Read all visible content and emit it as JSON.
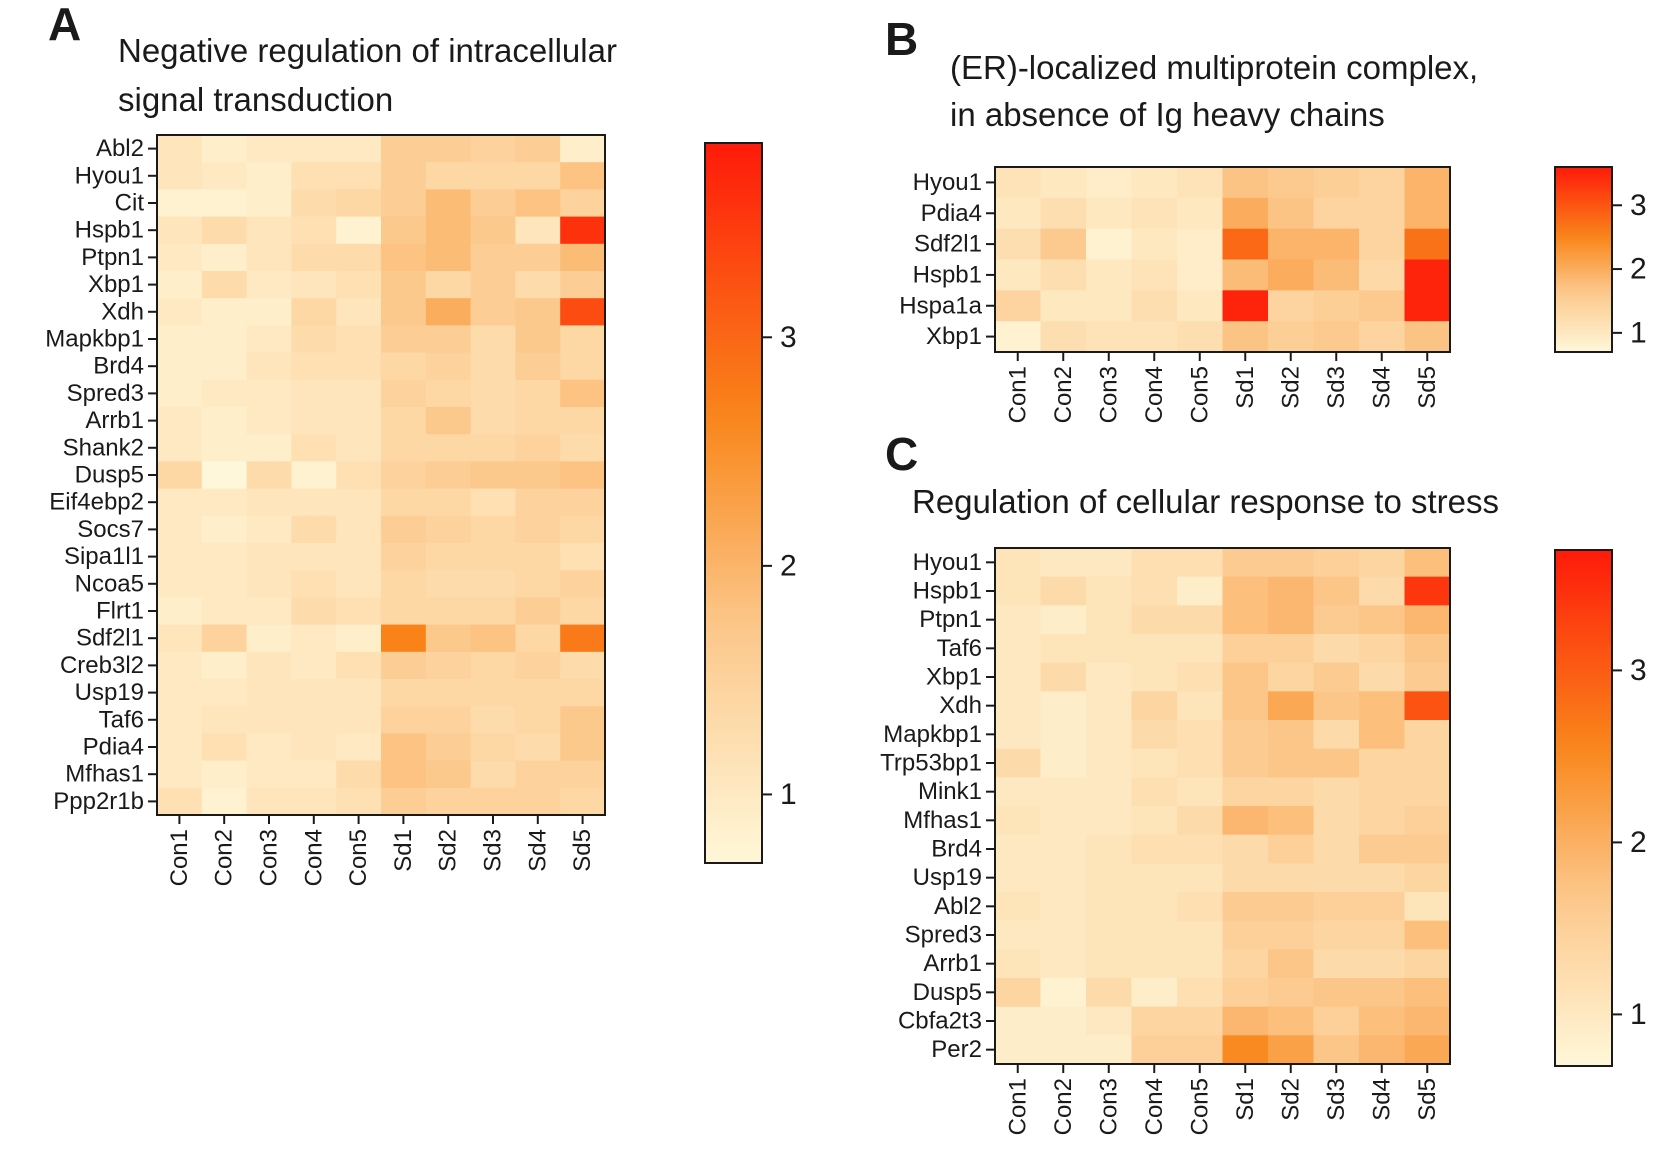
{
  "panels": {
    "A": {
      "letter": "A",
      "title_lines": [
        "Negative regulation of intracellular",
        "signal transduction"
      ]
    },
    "B": {
      "letter": "B",
      "title_lines": [
        "(ER)-localized multiprotein complex,",
        "in absence of Ig heavy chains"
      ]
    },
    "C": {
      "letter": "C",
      "title_lines": [
        "Regulation of cellular response to stress"
      ]
    }
  },
  "colors": {
    "low": "#fff7d9",
    "mid_low": "#fcc78a",
    "mid": "#f9861a",
    "high": "#ff1a0a",
    "frame": "#1a1a1a"
  },
  "chart_data": [
    {
      "type": "heatmap",
      "panel": "A",
      "title": "Negative regulation of intracellular signal transduction",
      "columns": [
        "Con1",
        "Con2",
        "Con3",
        "Con4",
        "Con5",
        "Sd1",
        "Sd2",
        "Sd3",
        "Sd4",
        "Sd5"
      ],
      "rows": [
        "Abl2",
        "Hyou1",
        "Cit",
        "Hspb1",
        "Ptpn1",
        "Xbp1",
        "Xdh",
        "Mapkbp1",
        "Brd4",
        "Spred3",
        "Arrb1",
        "Shank2",
        "Dusp5",
        "Eif4ebp2",
        "Socs7",
        "Sipa1l1",
        "Ncoa5",
        "Flrt1",
        "Sdf2l1",
        "Creb3l2",
        "Usp19",
        "Taf6",
        "Pdia4",
        "Mfhas1",
        "Ppp2r1b"
      ],
      "values": [
        [
          1.1,
          0.9,
          1.0,
          1.0,
          1.0,
          1.6,
          1.6,
          1.5,
          1.6,
          0.9
        ],
        [
          1.1,
          1.0,
          0.9,
          1.2,
          1.2,
          1.6,
          1.4,
          1.4,
          1.4,
          1.8
        ],
        [
          0.8,
          0.8,
          0.9,
          1.3,
          1.4,
          1.6,
          1.9,
          1.6,
          1.8,
          1.5
        ],
        [
          1.1,
          1.3,
          1.1,
          1.2,
          0.8,
          1.7,
          1.9,
          1.7,
          1.1,
          3.6
        ],
        [
          1.0,
          0.9,
          1.1,
          1.3,
          1.3,
          1.8,
          1.9,
          1.6,
          1.6,
          1.9
        ],
        [
          0.9,
          1.3,
          1.0,
          1.1,
          1.2,
          1.7,
          1.4,
          1.6,
          1.3,
          1.6
        ],
        [
          1.0,
          0.9,
          0.9,
          1.4,
          1.1,
          1.7,
          2.1,
          1.6,
          1.7,
          3.3
        ],
        [
          0.9,
          0.9,
          1.0,
          1.3,
          1.2,
          1.6,
          1.6,
          1.3,
          1.7,
          1.4
        ],
        [
          0.9,
          0.9,
          1.1,
          1.2,
          1.2,
          1.4,
          1.5,
          1.3,
          1.6,
          1.4
        ],
        [
          0.9,
          1.0,
          1.0,
          1.1,
          1.1,
          1.5,
          1.4,
          1.3,
          1.4,
          1.8
        ],
        [
          1.0,
          0.9,
          1.0,
          1.1,
          1.1,
          1.4,
          1.7,
          1.3,
          1.4,
          1.4
        ],
        [
          1.0,
          0.9,
          0.9,
          1.2,
          1.1,
          1.4,
          1.4,
          1.4,
          1.5,
          1.3
        ],
        [
          1.4,
          0.7,
          1.3,
          0.8,
          1.2,
          1.5,
          1.6,
          1.7,
          1.7,
          1.8
        ],
        [
          1.0,
          1.0,
          1.1,
          1.1,
          1.1,
          1.4,
          1.4,
          1.2,
          1.5,
          1.5
        ],
        [
          1.0,
          0.9,
          1.0,
          1.3,
          1.1,
          1.6,
          1.5,
          1.4,
          1.5,
          1.4
        ],
        [
          1.0,
          1.0,
          1.1,
          1.1,
          1.1,
          1.5,
          1.4,
          1.4,
          1.4,
          1.2
        ],
        [
          1.0,
          1.0,
          1.1,
          1.2,
          1.1,
          1.4,
          1.3,
          1.3,
          1.4,
          1.5
        ],
        [
          0.9,
          1.0,
          1.0,
          1.3,
          1.2,
          1.4,
          1.4,
          1.4,
          1.6,
          1.4
        ],
        [
          1.1,
          1.5,
          0.9,
          1.0,
          0.9,
          2.7,
          1.7,
          1.8,
          1.4,
          2.8
        ],
        [
          1.0,
          0.9,
          1.1,
          1.0,
          1.2,
          1.6,
          1.5,
          1.4,
          1.5,
          1.3
        ],
        [
          1.0,
          1.0,
          1.1,
          1.1,
          1.1,
          1.4,
          1.4,
          1.4,
          1.4,
          1.4
        ],
        [
          1.0,
          1.1,
          1.1,
          1.1,
          1.1,
          1.5,
          1.5,
          1.3,
          1.4,
          1.7
        ],
        [
          1.0,
          1.2,
          1.0,
          1.1,
          1.0,
          1.8,
          1.6,
          1.4,
          1.3,
          1.7
        ],
        [
          1.0,
          0.9,
          1.0,
          1.0,
          1.3,
          1.8,
          1.7,
          1.3,
          1.5,
          1.5
        ],
        [
          1.2,
          0.8,
          1.1,
          1.1,
          1.2,
          1.6,
          1.5,
          1.5,
          1.5,
          1.4
        ]
      ],
      "colorbar": {
        "ticks": [
          1,
          2,
          3
        ],
        "range": [
          0.7,
          3.85
        ]
      }
    },
    {
      "type": "heatmap",
      "panel": "B",
      "title": "(ER)-localized multiprotein complex, in absence of Ig heavy chains",
      "columns": [
        "Con1",
        "Con2",
        "Con3",
        "Con4",
        "Con5",
        "Sd1",
        "Sd2",
        "Sd3",
        "Sd4",
        "Sd5"
      ],
      "rows": [
        "Hyou1",
        "Pdia4",
        "Sdf2l1",
        "Hspb1",
        "Hspa1a",
        "Xbp1"
      ],
      "values": [
        [
          1.1,
          1.0,
          0.9,
          1.0,
          1.1,
          1.7,
          1.6,
          1.5,
          1.4,
          1.9
        ],
        [
          1.0,
          1.2,
          1.0,
          1.1,
          1.0,
          2.0,
          1.7,
          1.4,
          1.4,
          1.9
        ],
        [
          1.2,
          1.6,
          0.8,
          1.0,
          0.9,
          2.8,
          1.9,
          1.9,
          1.4,
          2.7
        ],
        [
          1.0,
          1.2,
          1.0,
          1.1,
          0.9,
          1.8,
          2.0,
          1.8,
          1.3,
          3.5
        ],
        [
          1.4,
          1.0,
          1.0,
          1.2,
          1.0,
          3.5,
          1.4,
          1.5,
          1.6,
          3.5
        ],
        [
          0.8,
          1.2,
          1.1,
          1.1,
          1.2,
          1.7,
          1.5,
          1.6,
          1.4,
          1.7
        ]
      ],
      "colorbar": {
        "ticks": [
          1,
          2,
          3
        ],
        "range": [
          0.7,
          3.6
        ]
      }
    },
    {
      "type": "heatmap",
      "panel": "C",
      "title": "Regulation of cellular response to stress",
      "columns": [
        "Con1",
        "Con2",
        "Con3",
        "Con4",
        "Con5",
        "Sd1",
        "Sd2",
        "Sd3",
        "Sd4",
        "Sd5"
      ],
      "rows": [
        "Hyou1",
        "Hspb1",
        "Ptpn1",
        "Taf6",
        "Xbp1",
        "Xdh",
        "Mapkbp1",
        "Trp53bp1",
        "Mink1",
        "Mfhas1",
        "Brd4",
        "Usp19",
        "Abl2",
        "Spred3",
        "Arrb1",
        "Dusp5",
        "Cbfa2t3",
        "Per2"
      ],
      "values": [
        [
          1.1,
          1.0,
          1.0,
          1.2,
          1.2,
          1.6,
          1.6,
          1.5,
          1.4,
          1.8
        ],
        [
          1.1,
          1.3,
          1.1,
          1.2,
          0.9,
          1.8,
          1.9,
          1.7,
          1.3,
          3.4
        ],
        [
          1.0,
          0.9,
          1.1,
          1.3,
          1.3,
          1.8,
          1.9,
          1.6,
          1.7,
          1.9
        ],
        [
          1.0,
          1.1,
          1.1,
          1.1,
          1.1,
          1.5,
          1.5,
          1.3,
          1.4,
          1.7
        ],
        [
          1.0,
          1.3,
          1.0,
          1.1,
          1.2,
          1.7,
          1.4,
          1.6,
          1.3,
          1.6
        ],
        [
          1.0,
          0.9,
          1.0,
          1.4,
          1.1,
          1.7,
          2.1,
          1.7,
          1.8,
          3.1
        ],
        [
          1.0,
          0.9,
          1.0,
          1.3,
          1.2,
          1.6,
          1.7,
          1.3,
          1.8,
          1.4
        ],
        [
          1.3,
          0.9,
          1.0,
          1.1,
          1.2,
          1.6,
          1.7,
          1.7,
          1.4,
          1.4
        ],
        [
          1.0,
          1.0,
          1.0,
          1.2,
          1.1,
          1.4,
          1.4,
          1.3,
          1.4,
          1.4
        ],
        [
          1.1,
          1.0,
          1.0,
          1.1,
          1.3,
          1.9,
          1.8,
          1.3,
          1.4,
          1.5
        ],
        [
          1.0,
          1.0,
          1.1,
          1.2,
          1.2,
          1.3,
          1.5,
          1.3,
          1.6,
          1.6
        ],
        [
          1.0,
          1.0,
          1.1,
          1.1,
          1.1,
          1.3,
          1.3,
          1.3,
          1.3,
          1.4
        ],
        [
          1.1,
          1.0,
          1.1,
          1.1,
          1.2,
          1.6,
          1.6,
          1.5,
          1.5,
          1.1
        ],
        [
          1.0,
          1.0,
          1.1,
          1.1,
          1.1,
          1.5,
          1.5,
          1.4,
          1.4,
          1.8
        ],
        [
          1.1,
          1.0,
          1.1,
          1.1,
          1.1,
          1.4,
          1.7,
          1.3,
          1.3,
          1.4
        ],
        [
          1.4,
          0.8,
          1.3,
          0.9,
          1.2,
          1.5,
          1.6,
          1.7,
          1.7,
          1.8
        ],
        [
          0.9,
          0.9,
          1.0,
          1.4,
          1.4,
          1.9,
          1.8,
          1.5,
          1.8,
          1.9
        ],
        [
          0.9,
          0.9,
          0.9,
          1.5,
          1.5,
          2.5,
          2.2,
          1.7,
          1.9,
          2.1
        ]
      ],
      "colorbar": {
        "ticks": [
          1,
          2,
          3
        ],
        "range": [
          0.7,
          3.7
        ]
      }
    }
  ]
}
